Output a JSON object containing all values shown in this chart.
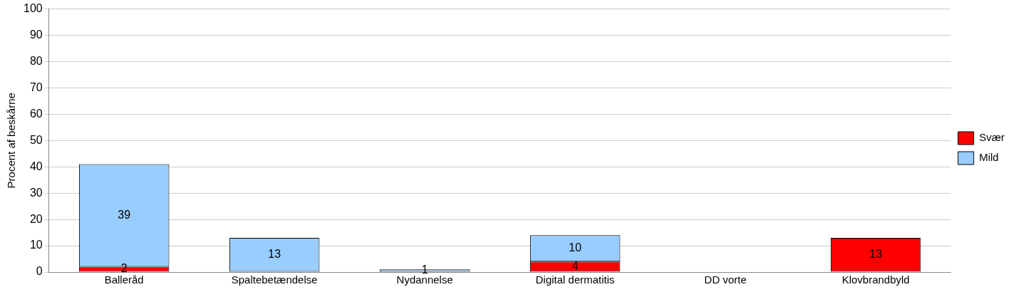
{
  "chart_data": {
    "type": "bar",
    "stacked": true,
    "ylabel": "Procent af beskårne",
    "categories": [
      "Balleråd",
      "Spaltebetændelse",
      "Nydannelse",
      "Digital dermatitis",
      "DD vorte",
      "Klovbrandbyld"
    ],
    "series": [
      {
        "name": "Svær",
        "color": "#ff0000",
        "values": [
          2,
          0,
          0,
          4,
          0,
          13
        ],
        "value_labels": [
          "2",
          null,
          null,
          "4",
          null,
          "13"
        ]
      },
      {
        "name": "Mild",
        "color": "#99ccff",
        "values": [
          39,
          13,
          1,
          10,
          0,
          0
        ],
        "value_labels": [
          "39",
          "13",
          "1",
          "10",
          null,
          null
        ]
      }
    ],
    "ylim": [
      0,
      100
    ],
    "yticks": [
      0,
      10,
      20,
      30,
      40,
      50,
      60,
      70,
      80,
      90,
      100
    ],
    "grid": "y",
    "legend": "right"
  }
}
